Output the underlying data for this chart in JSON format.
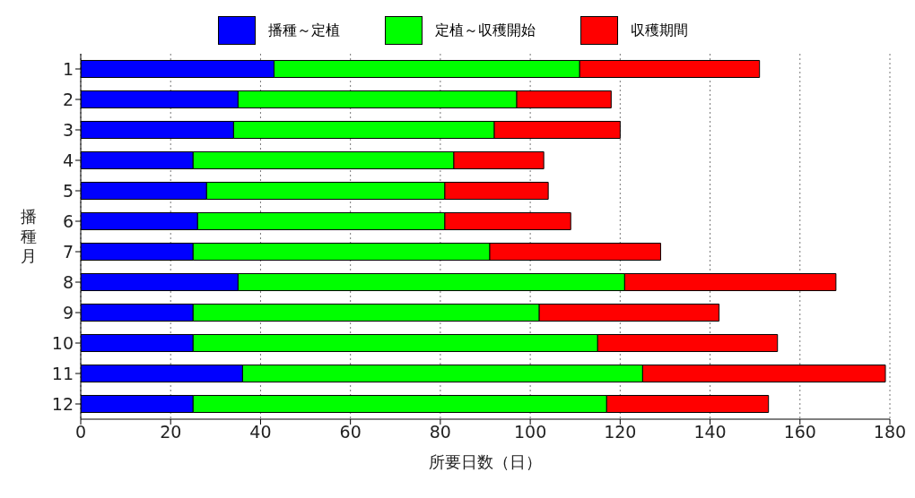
{
  "chart_data": {
    "type": "bar",
    "orientation": "horizontal",
    "stacked": true,
    "xlabel": "所要日数（日）",
    "ylabel": "播種月",
    "categories": [
      "1",
      "2",
      "3",
      "4",
      "5",
      "6",
      "7",
      "8",
      "9",
      "10",
      "11",
      "12"
    ],
    "series": [
      {
        "name": "播種～定植",
        "color": "#0000ff",
        "values": [
          43,
          35,
          34,
          25,
          28,
          26,
          25,
          35,
          25,
          25,
          36,
          25
        ]
      },
      {
        "name": "定植～収穫開始",
        "color": "#00ff00",
        "values": [
          68,
          62,
          58,
          58,
          53,
          55,
          66,
          86,
          77,
          90,
          89,
          92
        ]
      },
      {
        "name": "収穫期間",
        "color": "#ff0000",
        "values": [
          40,
          21,
          28,
          20,
          23,
          28,
          38,
          47,
          40,
          40,
          54,
          36
        ]
      }
    ],
    "xlim": [
      0,
      180
    ],
    "xticks": [
      0,
      20,
      40,
      60,
      80,
      100,
      120,
      140,
      160,
      180
    ],
    "grid": "x",
    "legend": "top"
  }
}
